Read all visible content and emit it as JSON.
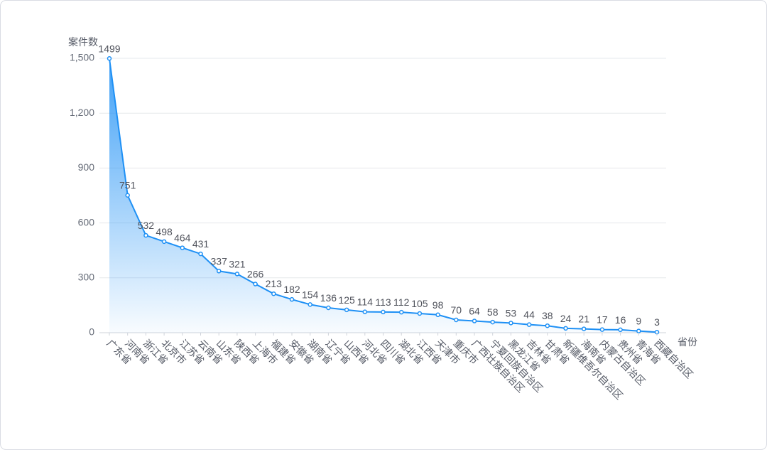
{
  "chart_data": {
    "type": "line",
    "y_label": "案件数",
    "x_label": "省份",
    "categories": [
      "广东省",
      "河南省",
      "浙江省",
      "北京市",
      "江苏省",
      "云南省",
      "山东省",
      "陕西省",
      "上海市",
      "福建省",
      "安徽省",
      "湖南省",
      "辽宁省",
      "山西省",
      "河北省",
      "四川省",
      "湖北省",
      "江西省",
      "天津市",
      "重庆市",
      "广西壮族自治区",
      "宁夏回族自治区",
      "黑龙江省",
      "吉林省",
      "甘肃省",
      "新疆维吾尔自治区",
      "海南省",
      "内蒙古自治区",
      "贵州省",
      "青海省",
      "西藏自治区"
    ],
    "values": [
      1499,
      751,
      532,
      498,
      464,
      431,
      337,
      321,
      266,
      213,
      182,
      154,
      136,
      125,
      114,
      113,
      112,
      105,
      98,
      70,
      64,
      58,
      53,
      44,
      38,
      24,
      21,
      17,
      16,
      9,
      3
    ],
    "color": "#1e90f5",
    "ylim": [
      0,
      1500
    ],
    "yticks": [
      0,
      300,
      600,
      900,
      {
        "value": 1200,
        "label": "1,200"
      },
      {
        "value": 1500,
        "label": "1,500"
      }
    ],
    "grid": true
  }
}
